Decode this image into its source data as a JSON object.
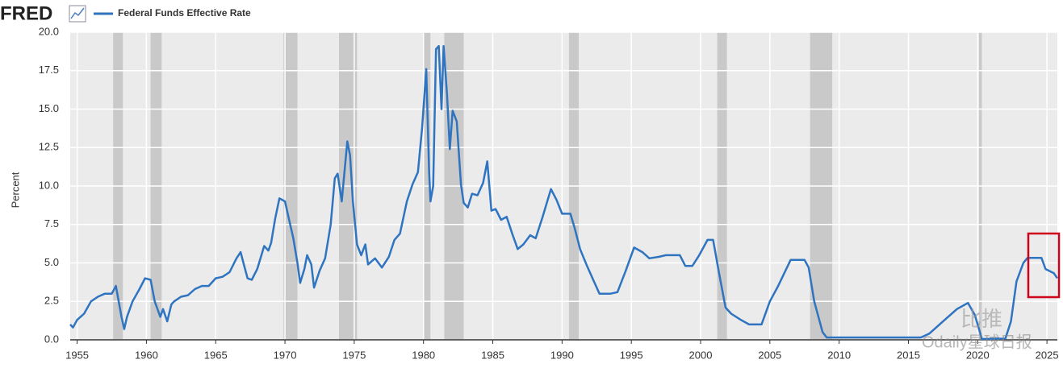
{
  "logo": "FRED",
  "chart_data": {
    "type": "line",
    "ylabel": "Percent",
    "series": [
      {
        "name": "Federal Funds Effective Rate",
        "color": "#2f74c0",
        "x": [
          1954.5,
          1954.7,
          1955,
          1955.5,
          1956,
          1956.5,
          1957,
          1957.5,
          1957.8,
          1958.2,
          1958.4,
          1958.6,
          1959,
          1959.5,
          1959.9,
          1960.3,
          1960.6,
          1961,
          1961.2,
          1961.5,
          1961.8,
          1962,
          1962.5,
          1963,
          1963.5,
          1964,
          1964.5,
          1965,
          1965.5,
          1966,
          1966.5,
          1966.8,
          1967,
          1967.3,
          1967.6,
          1968,
          1968.5,
          1968.8,
          1969,
          1969.3,
          1969.6,
          1970,
          1970.3,
          1970.6,
          1970.9,
          1971.1,
          1971.4,
          1971.6,
          1971.9,
          1972.1,
          1972.5,
          1972.9,
          1973.3,
          1973.6,
          1973.8,
          1974.1,
          1974.5,
          1974.7,
          1974.9,
          1975.2,
          1975.5,
          1975.8,
          1976,
          1976.5,
          1977,
          1977.5,
          1977.9,
          1978.3,
          1978.8,
          1979.2,
          1979.6,
          1979.9,
          1980.2,
          1980.4,
          1980.5,
          1980.7,
          1980.9,
          1981.1,
          1981.3,
          1981.45,
          1981.7,
          1981.9,
          1982.1,
          1982.4,
          1982.7,
          1982.9,
          1983.2,
          1983.5,
          1983.9,
          1984.3,
          1984.6,
          1984.9,
          1985.2,
          1985.6,
          1986,
          1986.4,
          1986.8,
          1987.2,
          1987.7,
          1988.1,
          1988.6,
          1989.2,
          1989.6,
          1990,
          1990.6,
          1990.9,
          1991.3,
          1991.8,
          1992.3,
          1992.7,
          1993.5,
          1994,
          1994.6,
          1995.2,
          1995.8,
          1996.3,
          1997,
          1997.5,
          1998.5,
          1998.9,
          1999.4,
          1999.9,
          2000.5,
          2000.9,
          2001.3,
          2001.8,
          2002.2,
          2002.9,
          2003.5,
          2004.4,
          2005,
          2005.6,
          2006.5,
          2007.5,
          2007.8,
          2008.2,
          2008.8,
          2009.1,
          2015.9,
          2016.5,
          2017.5,
          2018.5,
          2019.3,
          2019.8,
          2020.3,
          2022.0,
          2022.4,
          2022.8,
          2023.3,
          2023.6,
          2024.6,
          2024.9,
          2025.5,
          2025.75
        ],
        "values": [
          1.0,
          0.8,
          1.3,
          1.7,
          2.5,
          2.8,
          3.0,
          3.0,
          3.5,
          1.5,
          0.7,
          1.5,
          2.5,
          3.3,
          4.0,
          3.9,
          2.5,
          1.5,
          2.0,
          1.2,
          2.3,
          2.5,
          2.8,
          2.9,
          3.3,
          3.5,
          3.5,
          4.0,
          4.1,
          4.4,
          5.3,
          5.7,
          5.0,
          4.0,
          3.9,
          4.6,
          6.1,
          5.8,
          6.3,
          7.9,
          9.2,
          9.0,
          7.8,
          6.6,
          5.0,
          3.7,
          4.6,
          5.5,
          4.9,
          3.4,
          4.5,
          5.3,
          7.5,
          10.5,
          10.8,
          9.0,
          12.9,
          12.0,
          9.0,
          6.2,
          5.5,
          6.2,
          4.9,
          5.3,
          4.7,
          5.4,
          6.5,
          6.9,
          9.0,
          10.1,
          10.9,
          13.8,
          17.6,
          11.0,
          9.0,
          10.0,
          18.9,
          19.1,
          15.0,
          19.1,
          15.9,
          12.4,
          14.9,
          14.2,
          10.1,
          8.9,
          8.6,
          9.5,
          9.4,
          10.2,
          11.6,
          8.4,
          8.5,
          7.8,
          8.0,
          6.9,
          5.9,
          6.2,
          6.8,
          6.6,
          8.0,
          9.8,
          9.1,
          8.2,
          8.2,
          7.3,
          5.9,
          4.8,
          3.8,
          3.0,
          3.0,
          3.1,
          4.5,
          6.0,
          5.7,
          5.3,
          5.4,
          5.5,
          5.5,
          4.8,
          4.8,
          5.5,
          6.5,
          6.5,
          4.5,
          2.1,
          1.7,
          1.3,
          1.0,
          1.0,
          2.5,
          3.5,
          5.2,
          5.2,
          4.7,
          2.5,
          0.5,
          0.15,
          0.15,
          0.4,
          1.2,
          2.0,
          2.4,
          1.6,
          0.05,
          0.08,
          1.2,
          3.8,
          5.0,
          5.33,
          5.33,
          4.6,
          4.33,
          4.0
        ]
      }
    ],
    "recessions": [
      [
        1957.6,
        1958.3
      ],
      [
        1960.3,
        1961.1
      ],
      [
        1969.9,
        1970.9
      ],
      [
        1973.9,
        1975.2
      ],
      [
        1980.0,
        1980.5
      ],
      [
        1981.5,
        1982.9
      ],
      [
        1990.5,
        1991.2
      ],
      [
        2001.2,
        2001.9
      ],
      [
        2007.9,
        2009.5
      ],
      [
        2020.1,
        2020.3
      ]
    ],
    "xlim": [
      1954.5,
      2025.75
    ],
    "xticks": [
      1955,
      1960,
      1965,
      1970,
      1975,
      1980,
      1985,
      1990,
      1995,
      2000,
      2005,
      2010,
      2015,
      2020,
      2025
    ],
    "ylim": [
      0,
      20
    ],
    "yticks": [
      {
        "value": 0,
        "label": "0.0"
      },
      2.5,
      {
        "value": 5,
        "label": "5.0"
      },
      7.5,
      {
        "value": 10,
        "label": "10.0"
      },
      12.5,
      {
        "value": 15,
        "label": "15.0"
      },
      17.5,
      {
        "value": 20,
        "label": "20.0"
      }
    ],
    "grid": true
  },
  "watermark": [
    "比推",
    "Odaily星球日报"
  ]
}
